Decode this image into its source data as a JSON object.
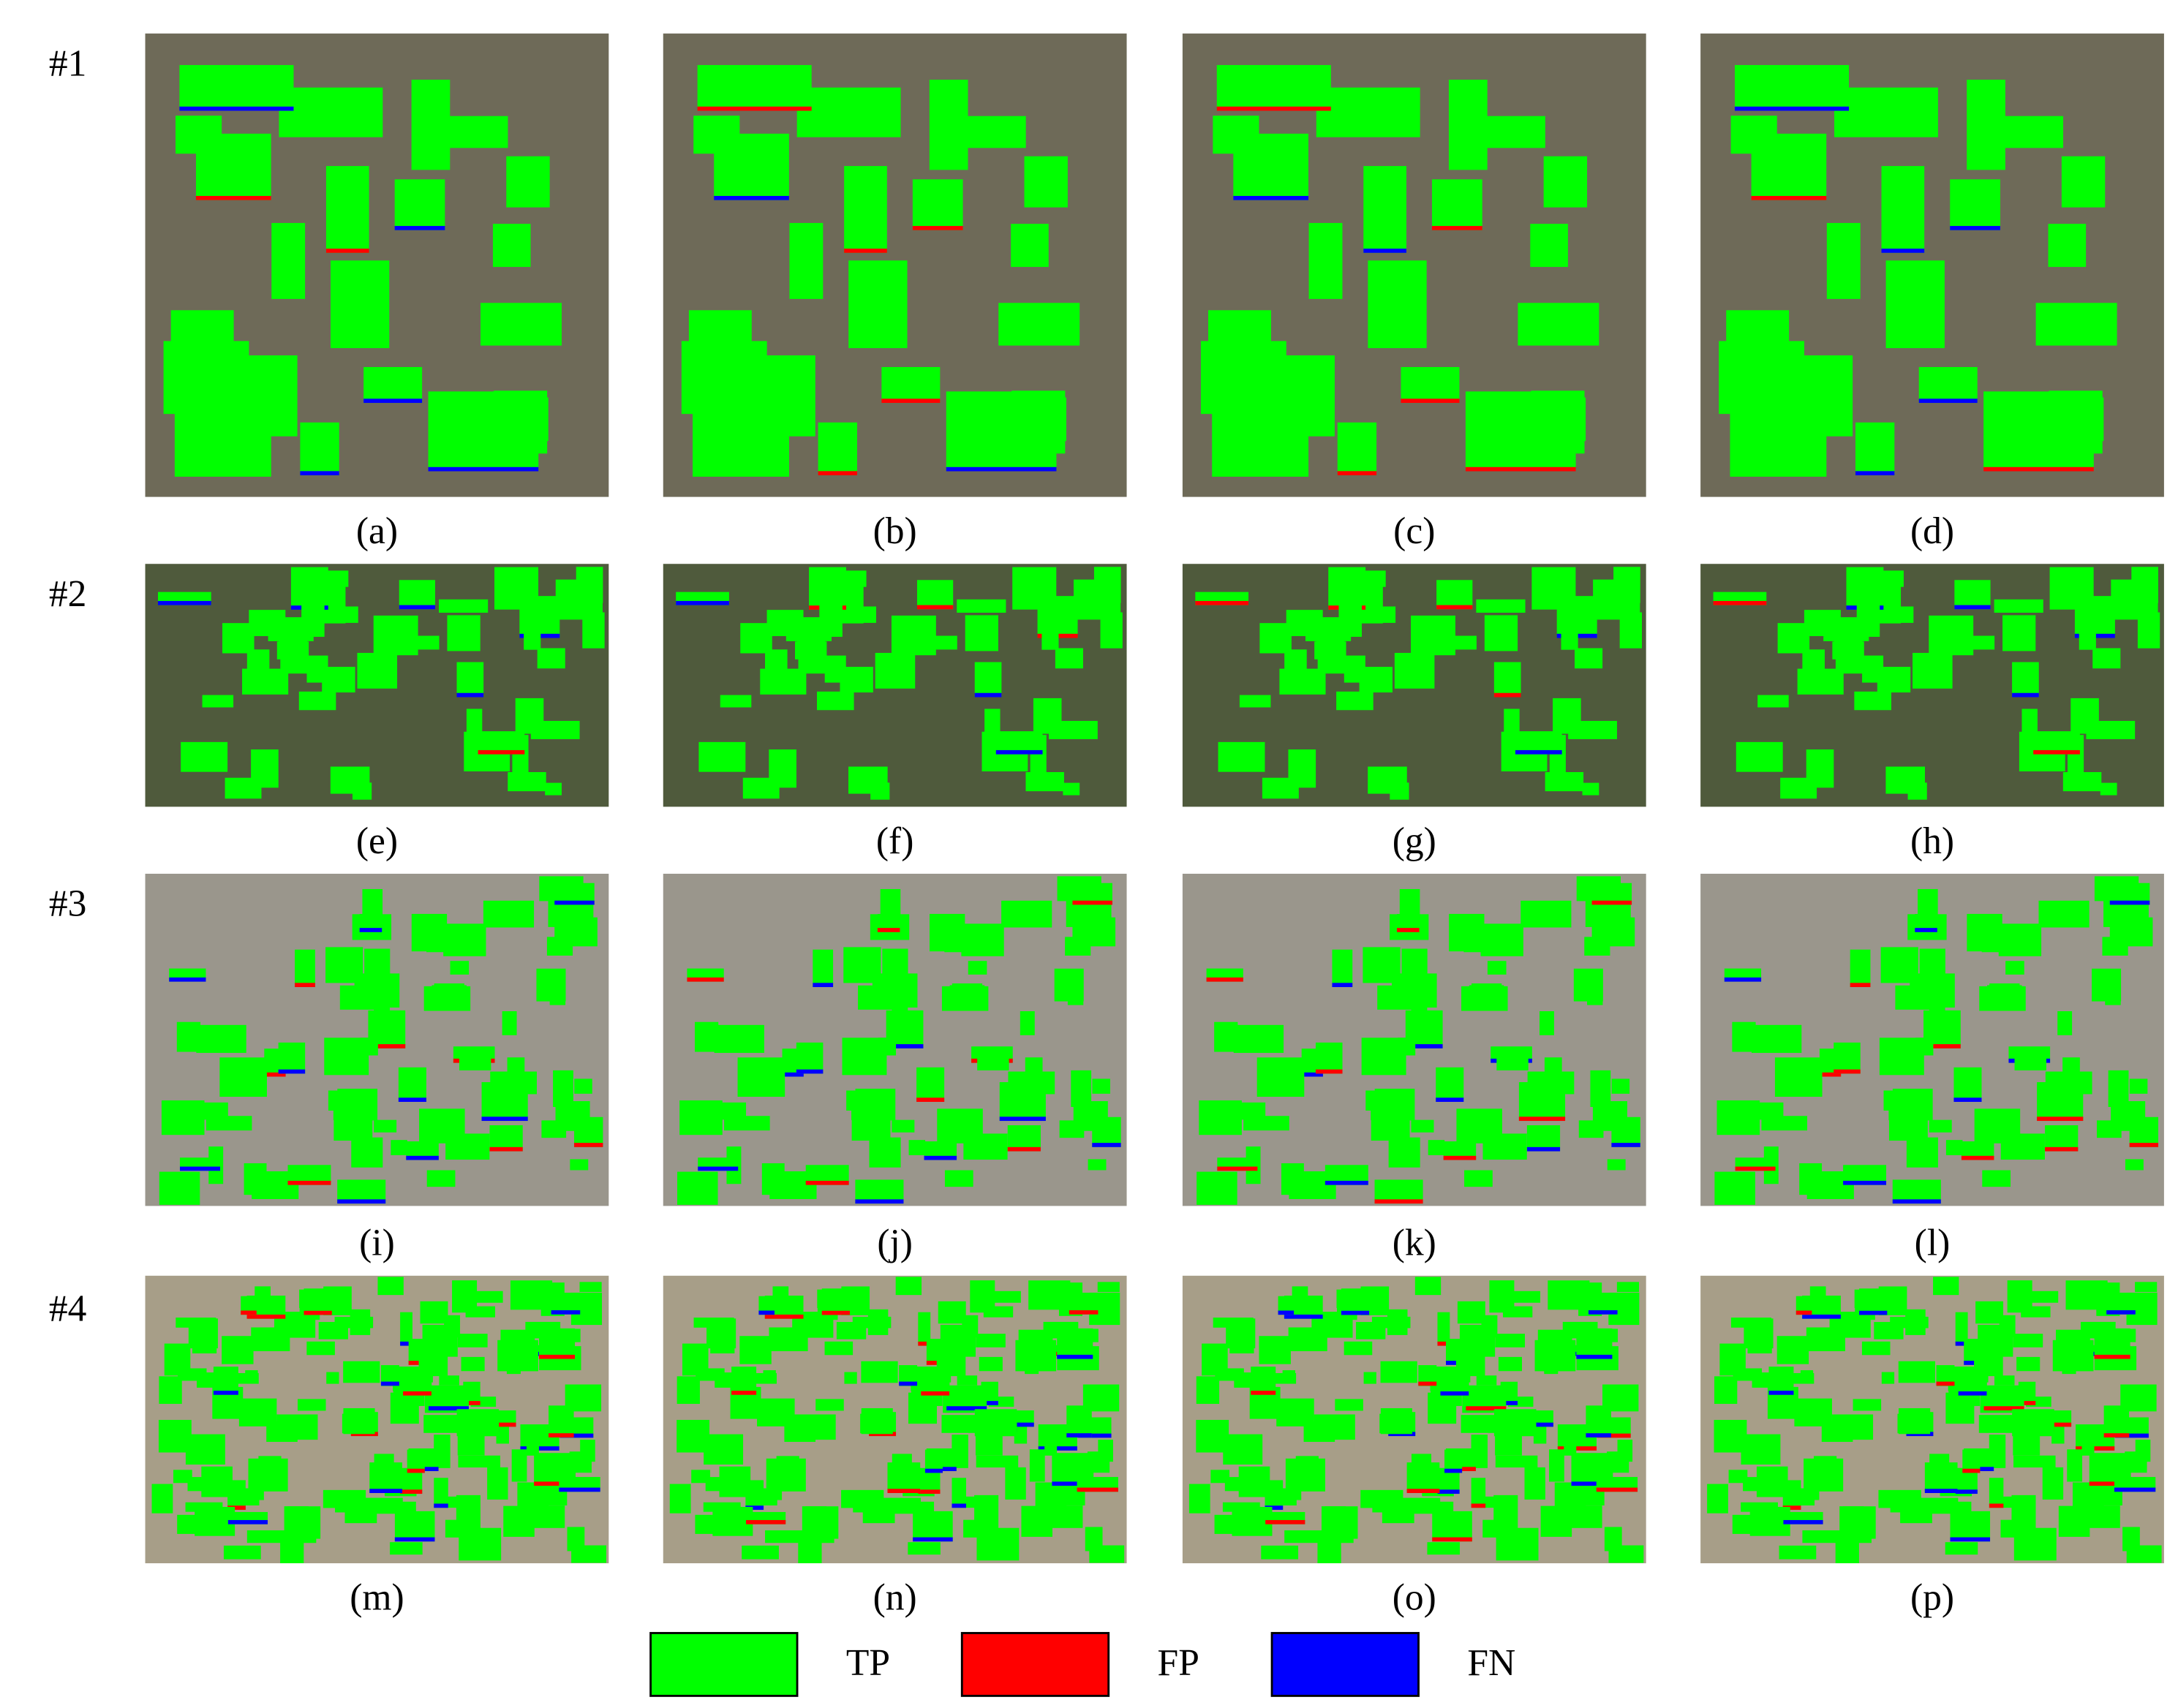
{
  "rows": [
    {
      "label": "#1",
      "captions": [
        "(a)",
        "(b)",
        "(c)",
        "(d)"
      ]
    },
    {
      "label": "#2",
      "captions": [
        "(e)",
        "(f)",
        "(g)",
        "(h)"
      ]
    },
    {
      "label": "#3",
      "captions": [
        "(i)",
        "(j)",
        "(k)",
        "(l)"
      ]
    },
    {
      "label": "#4",
      "captions": [
        "(m)",
        "(n)",
        "(o)",
        "(p)"
      ]
    }
  ],
  "legend": [
    {
      "label": "TP",
      "color": "#00ff00"
    },
    {
      "label": "FP",
      "color": "#ff0000"
    },
    {
      "label": "FN",
      "color": "#0000ff"
    }
  ]
}
